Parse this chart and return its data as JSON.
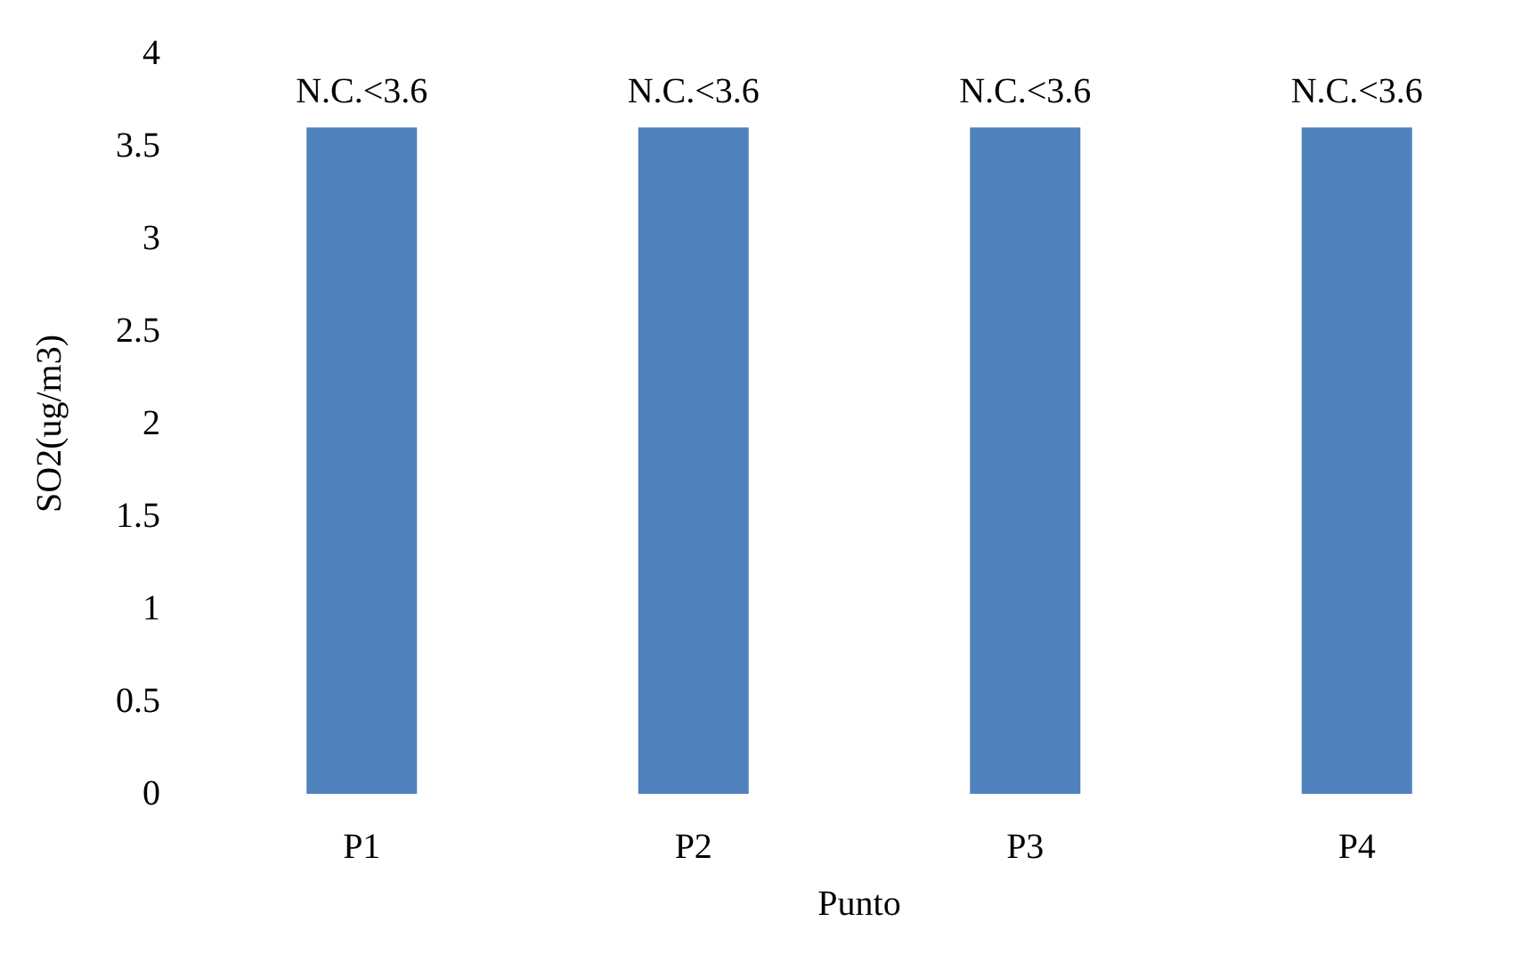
{
  "chart_data": {
    "type": "bar",
    "xlabel": "Punto",
    "ylabel": "SO2(ug/m3)",
    "categories": [
      "P1",
      "P2",
      "P3",
      "P4"
    ],
    "values": [
      3.6,
      3.6,
      3.6,
      3.6
    ],
    "value_labels": [
      "N.C.<3.6",
      "N.C.<3.6",
      "N.C.<3.6",
      "N.C.<3.6"
    ],
    "color": "#4f81bd",
    "ylim": [
      0,
      4
    ],
    "yticks": [
      0,
      0.5,
      1,
      1.5,
      2,
      2.5,
      3,
      3.5,
      4
    ]
  }
}
